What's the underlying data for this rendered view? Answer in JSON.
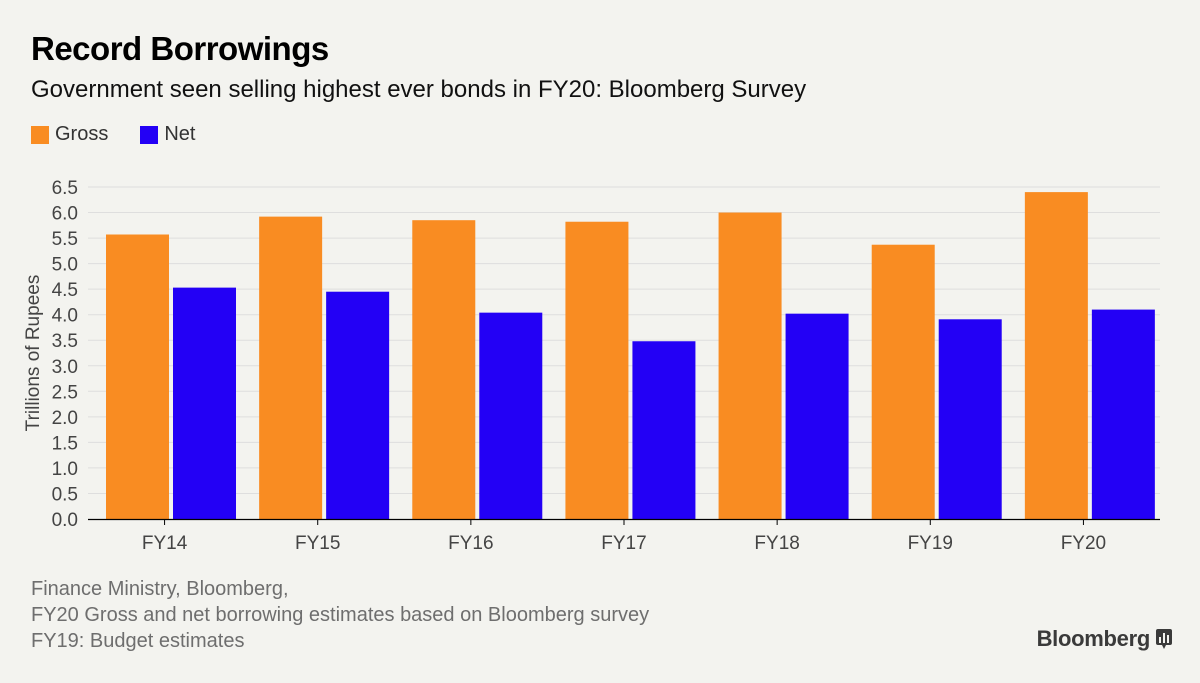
{
  "title": "Record Borrowings",
  "subtitle": "Government seen selling highest ever bonds in FY20: Bloomberg Survey",
  "colors": {
    "gross": "#f98c22",
    "net": "#2300f5",
    "grid": "#dedede",
    "axis": "#000000",
    "background": "#f3f3ef"
  },
  "chart_data": {
    "type": "bar",
    "title": "Record Borrowings",
    "subtitle": "Government seen selling highest ever bonds in FY20: Bloomberg Survey",
    "categories": [
      "FY14",
      "FY15",
      "FY16",
      "FY17",
      "FY18",
      "FY19",
      "FY20"
    ],
    "series": [
      {
        "name": "Gross",
        "color": "#f98c22",
        "values": [
          5.57,
          5.92,
          5.85,
          5.82,
          6.0,
          5.37,
          6.4
        ]
      },
      {
        "name": "Net",
        "color": "#2300f5",
        "values": [
          4.53,
          4.45,
          4.04,
          3.48,
          4.02,
          3.91,
          4.1
        ]
      }
    ],
    "xlabel": "",
    "ylabel": "Trillions of Rupees",
    "ylim": [
      0,
      6.5
    ],
    "yticks": [
      "0.0",
      "0.5",
      "1.0",
      "1.5",
      "2.0",
      "2.5",
      "3.0",
      "3.5",
      "4.0",
      "4.5",
      "5.0",
      "5.5",
      "6.0",
      "6.5"
    ],
    "grid": true,
    "legend_position": "top-left"
  },
  "source_lines": [
    "Finance Ministry, Bloomberg,",
    "FY20 Gross and net borrowing estimates based on Bloomberg survey",
    "FY19: Budget estimates"
  ],
  "brand": "Bloomberg",
  "brand_icon": "bloomberg-terminal-icon"
}
